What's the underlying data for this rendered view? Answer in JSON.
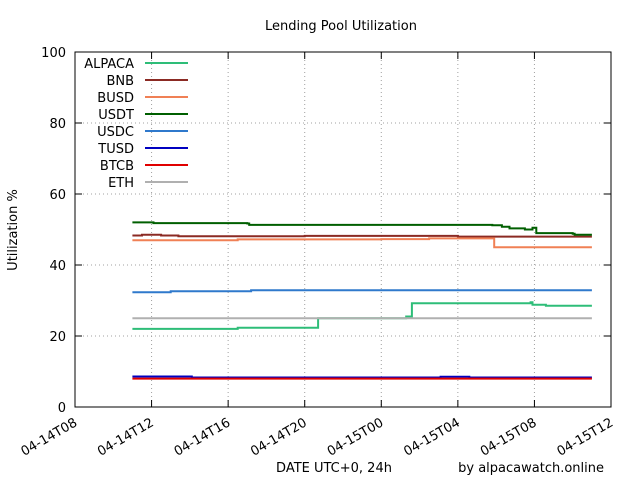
{
  "chart_data": {
    "type": "line",
    "title": "Lending Pool Utilization",
    "xlabel": "DATE UTC+0, 24h",
    "ylabel": "Utilization %",
    "credit": "by alpacawatch.online",
    "ylim": [
      0,
      100
    ],
    "xlim": [
      "04-14T08",
      "04-15T12"
    ],
    "y_ticks": [
      "0",
      "20",
      "40",
      "60",
      "80",
      "100"
    ],
    "x_ticks": [
      "04-14T08",
      "04-14T12",
      "04-14T16",
      "04-14T20",
      "04-15T00",
      "04-15T04",
      "04-15T08",
      "04-15T12"
    ],
    "grid": true,
    "legend_position": "top-left",
    "series": [
      {
        "name": "ALPACA",
        "color": "#2ebd78",
        "points": [
          [
            "04-14T11",
            22
          ],
          [
            "04-14T16.4",
            22
          ],
          [
            "04-14T16.5",
            22.3
          ],
          [
            "04-14T20.5",
            22.3
          ],
          [
            "04-14T20.7",
            25
          ],
          [
            "04-15T00.5",
            25
          ],
          [
            "04-15T01.3",
            25.5
          ],
          [
            "04-15T01.6",
            29.2
          ],
          [
            "04-15T07",
            29.2
          ],
          [
            "04-15T07.8",
            29.5
          ],
          [
            "04-15T07.9",
            28.8
          ],
          [
            "04-15T08.5",
            28.8
          ],
          [
            "04-15T08.6",
            28.5
          ],
          [
            "04-15T11",
            28.5
          ]
        ]
      },
      {
        "name": "BNB",
        "color": "#8b2a23",
        "points": [
          [
            "04-14T11",
            48.3
          ],
          [
            "04-14T11.5",
            48.5
          ],
          [
            "04-14T12.5",
            48.3
          ],
          [
            "04-14T13.4",
            48.1
          ],
          [
            "04-14T20",
            48.2
          ],
          [
            "04-15T00",
            48.2
          ],
          [
            "04-15T04",
            48
          ],
          [
            "04-15T11",
            48
          ]
        ]
      },
      {
        "name": "BUSD",
        "color": "#f08055",
        "points": [
          [
            "04-14T11",
            47
          ],
          [
            "04-14T16.4",
            47
          ],
          [
            "04-14T16.5",
            47.2
          ],
          [
            "04-14T20",
            47.2
          ],
          [
            "04-15T00",
            47.3
          ],
          [
            "04-15T02.5",
            47.5
          ],
          [
            "04-15T05.8",
            47.5
          ],
          [
            "04-15T05.9",
            45
          ],
          [
            "04-15T11",
            45
          ]
        ]
      },
      {
        "name": "USDT",
        "color": "#005f00",
        "points": [
          [
            "04-14T11",
            52
          ],
          [
            "04-14T12",
            52
          ],
          [
            "04-14T12.1",
            51.8
          ],
          [
            "04-14T17",
            51.7
          ],
          [
            "04-14T17.1",
            51.3
          ],
          [
            "04-15T05.8",
            51.2
          ],
          [
            "04-15T06.3",
            50.8
          ],
          [
            "04-15T06.7",
            50.3
          ],
          [
            "04-15T07.5",
            50
          ],
          [
            "04-15T07.9",
            50.5
          ],
          [
            "04-15T08.1",
            49
          ],
          [
            "04-15T10",
            48.8
          ],
          [
            "04-15T10.1",
            48.5
          ],
          [
            "04-15T11",
            48.5
          ]
        ]
      },
      {
        "name": "USDC",
        "color": "#2f79cc",
        "points": [
          [
            "04-14T11",
            32.3
          ],
          [
            "04-14T12.5",
            32.3
          ],
          [
            "04-14T13",
            32.6
          ],
          [
            "04-14T17",
            32.6
          ],
          [
            "04-14T17.2",
            32.9
          ],
          [
            "04-15T11",
            32.9
          ]
        ]
      },
      {
        "name": "TUSD",
        "color": "#0000c0",
        "points": [
          [
            "04-14T11",
            8.6
          ],
          [
            "04-14T14",
            8.6
          ],
          [
            "04-14T14.1",
            8.3
          ],
          [
            "04-15T03",
            8.3
          ],
          [
            "04-15T03.1",
            8.5
          ],
          [
            "04-15T04.5",
            8.5
          ],
          [
            "04-15T04.6",
            8.3
          ],
          [
            "04-15T11",
            8.3
          ]
        ]
      },
      {
        "name": "BTCB",
        "color": "#e00000",
        "points": [
          [
            "04-14T11",
            8
          ],
          [
            "04-15T11",
            8
          ]
        ]
      },
      {
        "name": "ETH",
        "color": "#b0b0b0",
        "points": [
          [
            "04-14T11",
            25
          ],
          [
            "04-15T11",
            25
          ]
        ]
      }
    ]
  }
}
